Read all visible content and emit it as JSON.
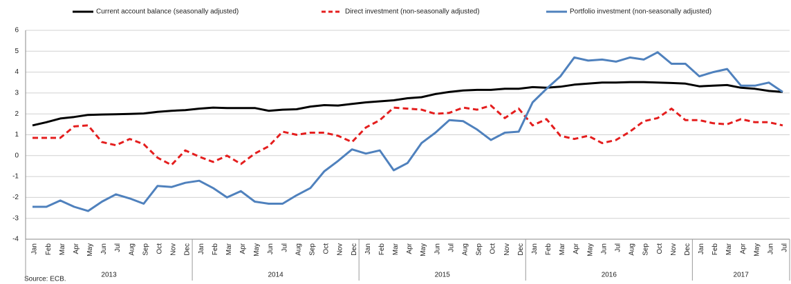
{
  "chart_data": {
    "type": "line",
    "categories": [
      "Jan",
      "Feb",
      "Mar",
      "Apr",
      "May",
      "Jun",
      "Jul",
      "Aug",
      "Sep",
      "Oct",
      "Nov",
      "Dec",
      "Jan",
      "Feb",
      "Mar",
      "Apr",
      "May",
      "Jun",
      "Jul",
      "Aug",
      "Sep",
      "Oct",
      "Nov",
      "Dec",
      "Jan",
      "Feb",
      "Mar",
      "Apr",
      "May",
      "Jun",
      "Jul",
      "Aug",
      "Sep",
      "Oct",
      "Nov",
      "Dec",
      "Jan",
      "Feb",
      "Mar",
      "Apr",
      "May",
      "Jun",
      "Jul",
      "Aug",
      "Sep",
      "Oct",
      "Nov",
      "Dec",
      "Jan",
      "Feb",
      "Mar",
      "Apr",
      "May",
      "Jun",
      "Jul"
    ],
    "year_groups": [
      "2013",
      "2014",
      "2015",
      "2016",
      "2017"
    ],
    "series": [
      {
        "name": "Current account balance (seasonally adjusted)",
        "color": "#000000",
        "dash": false,
        "values": [
          1.45,
          1.6,
          1.78,
          1.85,
          1.95,
          1.97,
          1.98,
          2.0,
          2.02,
          2.1,
          2.15,
          2.18,
          2.25,
          2.3,
          2.28,
          2.28,
          2.28,
          2.15,
          2.2,
          2.22,
          2.35,
          2.42,
          2.4,
          2.48,
          2.55,
          2.6,
          2.65,
          2.75,
          2.8,
          2.95,
          3.05,
          3.12,
          3.15,
          3.15,
          3.2,
          3.2,
          3.28,
          3.25,
          3.3,
          3.4,
          3.45,
          3.5,
          3.5,
          3.52,
          3.52,
          3.5,
          3.48,
          3.45,
          3.32,
          3.35,
          3.38,
          3.25,
          3.2,
          3.1,
          3.05
        ]
      },
      {
        "name": "Direct investment (non-seasonally adjusted)",
        "color": "#e41e1e",
        "dash": true,
        "values": [
          0.85,
          0.85,
          0.85,
          1.4,
          1.45,
          0.65,
          0.5,
          0.8,
          0.55,
          -0.1,
          -0.45,
          0.25,
          -0.05,
          -0.3,
          0.0,
          -0.4,
          0.1,
          0.45,
          1.15,
          1.0,
          1.1,
          1.1,
          0.95,
          0.65,
          1.35,
          1.7,
          2.3,
          2.25,
          2.2,
          2.0,
          2.05,
          2.3,
          2.2,
          2.4,
          1.8,
          2.25,
          1.45,
          1.75,
          0.95,
          0.8,
          0.95,
          0.6,
          0.75,
          1.15,
          1.65,
          1.8,
          2.25,
          1.7,
          1.7,
          1.55,
          1.5,
          1.75,
          1.6,
          1.6,
          1.45
        ]
      },
      {
        "name": "Portfolio investment (non-seasonally adjusted)",
        "color": "#4f81bd",
        "dash": false,
        "values": [
          -2.45,
          -2.45,
          -2.15,
          -2.45,
          -2.65,
          -2.2,
          -1.85,
          -2.05,
          -2.3,
          -1.45,
          -1.5,
          -1.3,
          -1.2,
          -1.55,
          -2.0,
          -1.7,
          -2.2,
          -2.3,
          -2.3,
          -1.9,
          -1.55,
          -0.75,
          -0.25,
          0.3,
          0.1,
          0.25,
          -0.7,
          -0.35,
          0.6,
          1.1,
          1.7,
          1.65,
          1.25,
          0.75,
          1.1,
          1.15,
          2.55,
          3.2,
          3.8,
          4.7,
          4.55,
          4.6,
          4.5,
          4.7,
          4.6,
          4.95,
          4.4,
          4.4,
          3.8,
          4.0,
          4.15,
          3.35,
          3.35,
          3.5,
          3.05
        ]
      }
    ],
    "ylim": [
      -4,
      6
    ],
    "yticks": [
      -4,
      -3,
      -2,
      -1,
      0,
      1,
      2,
      3,
      4,
      5,
      6
    ],
    "grid": true,
    "source": "Source: ECB."
  }
}
